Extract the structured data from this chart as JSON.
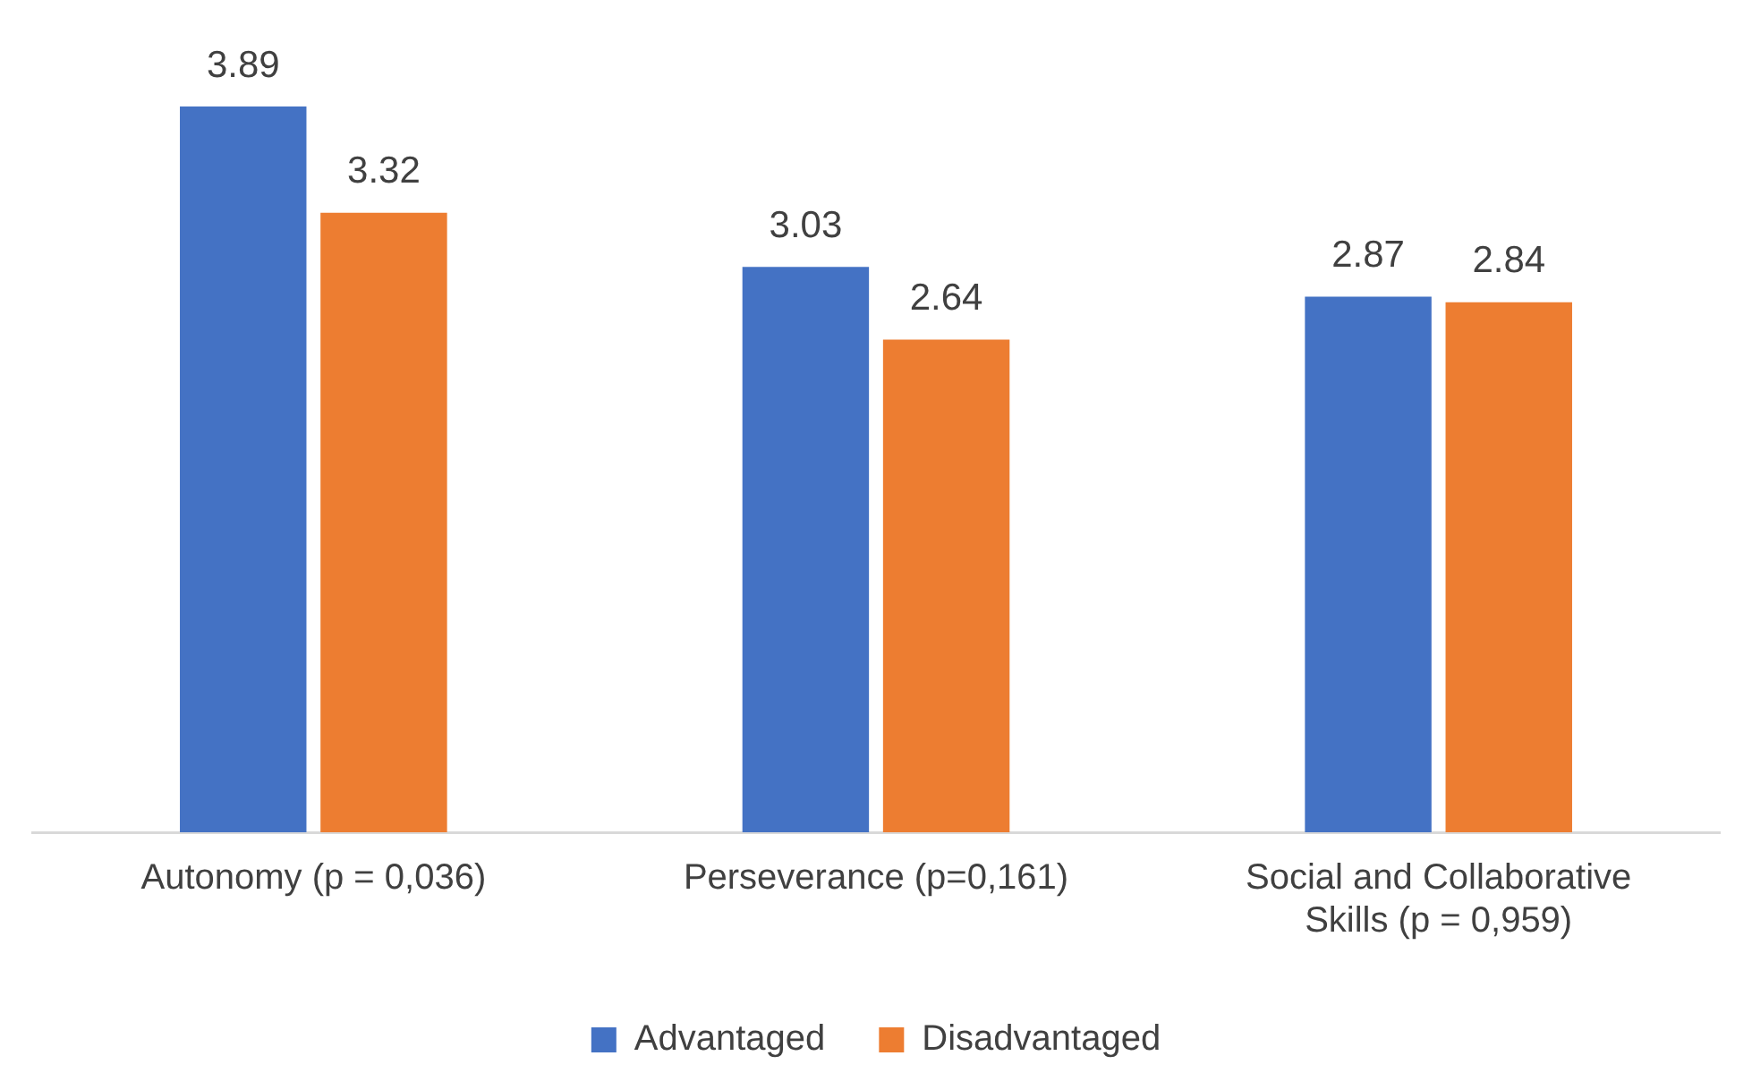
{
  "chart_data": {
    "type": "bar",
    "categories": [
      "Autonomy (p = 0,036)",
      "Perseverance (p=0,161)",
      "Social and Collaborative Skills (p = 0,959)"
    ],
    "series": [
      {
        "name": "Advantaged",
        "color": "#4472c4",
        "values": [
          3.89,
          3.03,
          2.87
        ]
      },
      {
        "name": "Disadvantaged",
        "color": "#ed7d31",
        "values": [
          3.32,
          2.64,
          2.84
        ]
      }
    ],
    "data_labels": true,
    "legend": "bottom",
    "grid": false
  }
}
